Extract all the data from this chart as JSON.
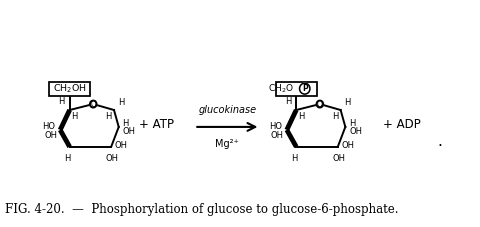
{
  "bg_color": "#ffffff",
  "fig_width": 4.8,
  "fig_height": 2.27,
  "dpi": 100,
  "caption": "FIG. 4-20.  —  Phosphorylation of glucose to glucose-6-phosphate.",
  "caption_fontsize": 8.5,
  "arrow_label_top": "glucokinase",
  "arrow_label_bottom": "Mg²⁺",
  "plus_atp": "+ ATP",
  "plus_adp": "+ ADP",
  "ring_color": "#000000",
  "line_width": 1.4,
  "bold_lw": 3.5
}
